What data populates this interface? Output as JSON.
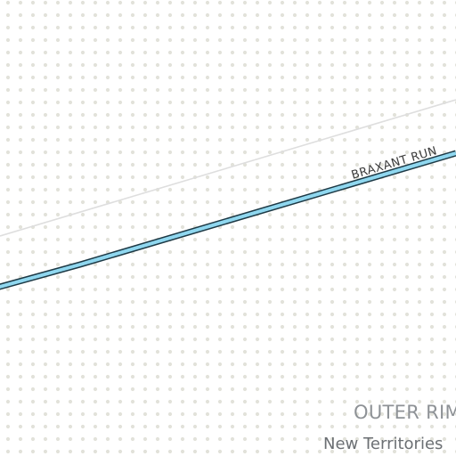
{
  "map": {
    "background_color": "#ffffff",
    "dot_color": "#e2e2da",
    "hyperlane_color": "#8fd7ef",
    "hyperlane_outline_color": "#1e3a46",
    "boundary_line_color": "#dedede",
    "route": {
      "label": "BRAXANT RUN"
    },
    "region": {
      "label": "OUTER RIM"
    },
    "subregion": {
      "label": "New Territories"
    }
  }
}
